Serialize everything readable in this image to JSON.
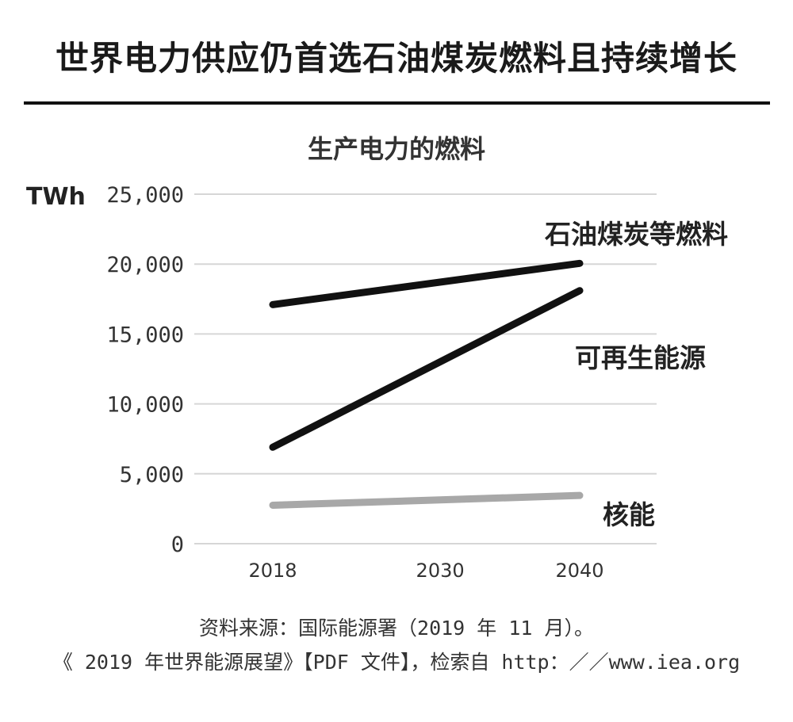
{
  "headline": "世界电力供应仍首选石油煤炭燃料且持续增长",
  "chart_data": {
    "type": "line",
    "title": "生产电力的燃料",
    "ylabel": "TWh",
    "xlabel": "",
    "categories": [
      "2018",
      "2030",
      "2040"
    ],
    "y_tick_labels": [
      "0",
      "5,000",
      "10,000",
      "15,000",
      "20,000",
      "25,000"
    ],
    "y_ticks": [
      0,
      5000,
      10000,
      15000,
      20000,
      25000
    ],
    "ylim": [
      0,
      25000
    ],
    "grid": true,
    "series": [
      {
        "name": "石油煤炭等燃料",
        "x": [
          2018,
          2040
        ],
        "values": [
          17100,
          20050
        ],
        "color": "#111111"
      },
      {
        "name": "可再生能源",
        "x": [
          2018,
          2040
        ],
        "values": [
          6900,
          18100
        ],
        "color": "#111111"
      },
      {
        "name": "核能",
        "x": [
          2018,
          2040
        ],
        "values": [
          2750,
          3450
        ],
        "color": "#a8a8a8"
      }
    ]
  },
  "source": {
    "line1": "资料来源：国际能源署（2019 年 11 月）。",
    "line2": "《 2019 年世界能源展望》【PDF 文件】，检索自 http：／／www.iea.org"
  }
}
